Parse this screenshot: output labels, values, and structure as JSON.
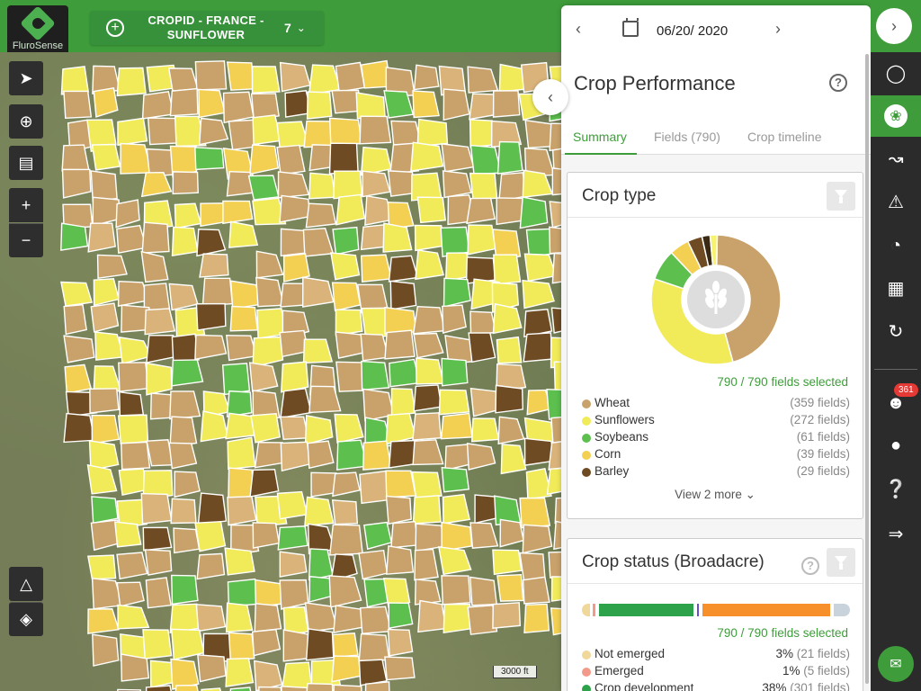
{
  "app": {
    "logo_text": "FluroSense"
  },
  "crop_selector": {
    "label_line1": "CROPID - FRANCE -",
    "label_line2": "SUNFLOWER",
    "count": "7"
  },
  "map": {
    "scale_label": "3000 ft"
  },
  "date_bar": {
    "date": "06/20/ 2020"
  },
  "panel": {
    "title": "Crop Performance",
    "tabs": [
      "Summary",
      "Fields (790)",
      "Crop timeline"
    ]
  },
  "crop_type": {
    "title": "Crop type",
    "selected_text": "790 / 790 fields selected",
    "items": [
      {
        "name": "Wheat",
        "count": "(359 fields)",
        "color": "#c9a26b",
        "value": 359
      },
      {
        "name": "Sunflowers",
        "count": "(272 fields)",
        "color": "#f2eb59",
        "value": 272
      },
      {
        "name": "Soybeans",
        "count": "(61 fields)",
        "color": "#5cbf4e",
        "value": 61
      },
      {
        "name": "Corn",
        "count": "(39 fields)",
        "color": "#f3cf52",
        "value": 39
      },
      {
        "name": "Barley",
        "count": "(29 fields)",
        "color": "#6e4b22",
        "value": 29
      }
    ],
    "view_more": "View 2 more"
  },
  "crop_status": {
    "title": "Crop status (Broadacre)",
    "selected_text": "790 / 790 fields selected",
    "items": [
      {
        "name": "Not emerged",
        "pct": "3%",
        "count": "(21 fields)",
        "color": "#f0d79a"
      },
      {
        "name": "Emerged",
        "pct": "1%",
        "count": "(5 fields)",
        "color": "#f29a8a"
      },
      {
        "name": "Crop development",
        "pct": "38%",
        "count": "(301 fields)",
        "color": "#2ea24a"
      }
    ]
  },
  "sidebar": {
    "notification_count": "361"
  },
  "colors": {
    "brand_green": "#3e9d3a"
  }
}
